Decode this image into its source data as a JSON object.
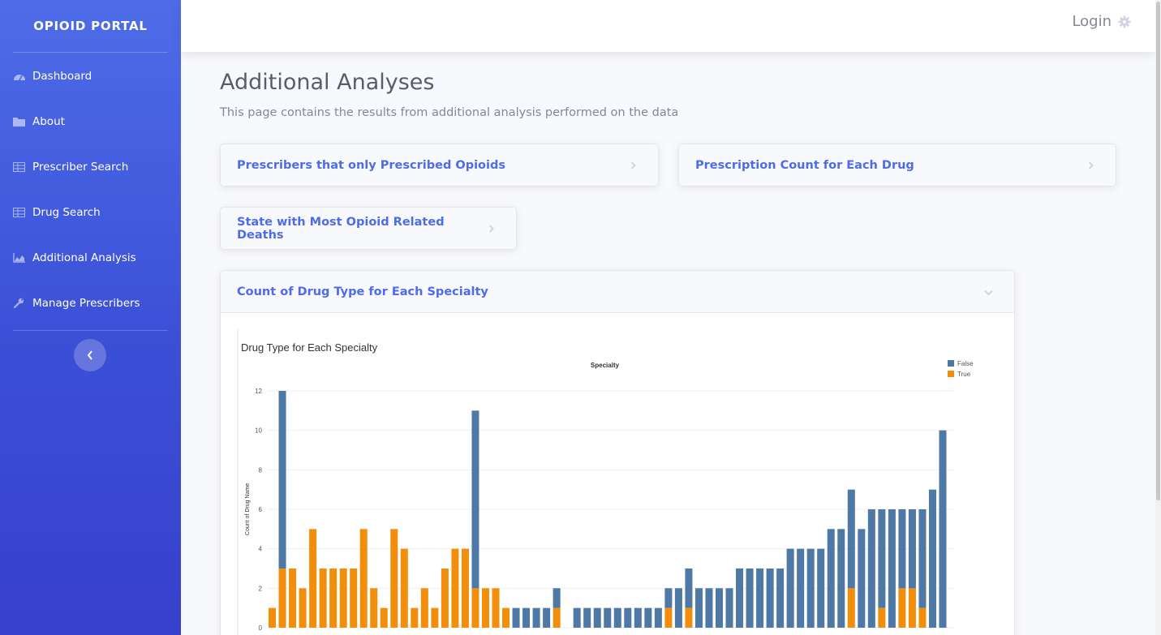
{
  "sidebar": {
    "brand": "OPIOID PORTAL",
    "items": [
      {
        "label": "Dashboard",
        "icon": "tachometer-icon"
      },
      {
        "label": "About",
        "icon": "folder-icon"
      },
      {
        "label": "Prescriber Search",
        "icon": "table-icon"
      },
      {
        "label": "Drug Search",
        "icon": "table-icon"
      },
      {
        "label": "Additional Analysis",
        "icon": "area-chart-icon"
      },
      {
        "label": "Manage Prescribers",
        "icon": "wrench-icon"
      }
    ],
    "toggle_icon": "chevron-left-icon"
  },
  "topbar": {
    "login_label": "Login",
    "login_icon": "gear-icon"
  },
  "page": {
    "title": "Additional Analyses",
    "subtitle": "This page contains the results from additional analysis performed on the data"
  },
  "cards": [
    {
      "title": "Prescribers that only Prescribed Opioids",
      "state": "collapsed"
    },
    {
      "title": "Prescription Count for Each Drug",
      "state": "collapsed"
    },
    {
      "title": "State with Most Opioid Related Deaths",
      "state": "collapsed"
    },
    {
      "title": "Count of Drug Type for Each Specialty",
      "state": "expanded"
    }
  ],
  "colors": {
    "accent": "#4e6ce8",
    "false_series": "#4e79a7",
    "true_series": "#f28e0b"
  },
  "chart_data": {
    "type": "bar",
    "stacked": true,
    "title": "Drug Type for Each Specialty",
    "column_header": "Specialty",
    "ylabel": "Count of Drug Name",
    "ylim": [
      0,
      12
    ],
    "yticks": [
      0,
      2,
      4,
      6,
      8,
      10,
      12
    ],
    "grid": true,
    "legend_position": "top-right",
    "series": [
      {
        "name": "False",
        "values": [
          0,
          9,
          0,
          0,
          0,
          0,
          0,
          0,
          0,
          0,
          0,
          0,
          0,
          0,
          0,
          0,
          0,
          0,
          0,
          0,
          9,
          0,
          0,
          0,
          1,
          1,
          1,
          1,
          1,
          0,
          1,
          1,
          1,
          1,
          1,
          1,
          1,
          1,
          1,
          1,
          2,
          2,
          2,
          2,
          2,
          2,
          3,
          3,
          3,
          3,
          3,
          4,
          4,
          4,
          4,
          5,
          5,
          5,
          5,
          6,
          5,
          6,
          4,
          4,
          5,
          7,
          10
        ]
      },
      {
        "name": "True",
        "values": [
          1,
          3,
          3,
          2,
          5,
          3,
          3,
          3,
          3,
          5,
          2,
          1,
          5,
          4,
          1,
          2,
          1,
          3,
          4,
          4,
          2,
          2,
          2,
          1,
          0,
          0,
          0,
          0,
          1,
          0,
          0,
          0,
          0,
          0,
          0,
          0,
          0,
          0,
          0,
          1,
          0,
          1,
          0,
          0,
          0,
          0,
          0,
          0,
          0,
          0,
          0,
          0,
          0,
          0,
          0,
          0,
          0,
          2,
          0,
          0,
          1,
          0,
          2,
          2,
          1,
          0,
          0
        ]
      }
    ]
  }
}
